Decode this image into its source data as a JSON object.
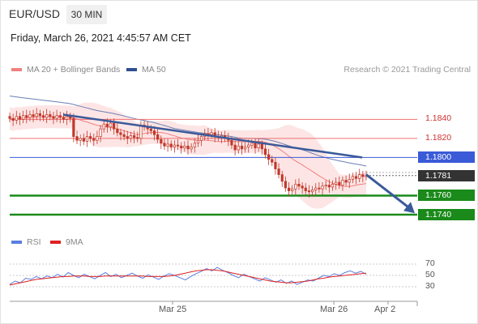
{
  "header": {
    "symbol": "EUR/USD",
    "period": "30 MIN",
    "timestamp": "Friday, March 26, 2021 4:45:57 AM CET"
  },
  "legend": {
    "ma20": "MA 20 + Bollinger Bands",
    "ma50": "MA 50",
    "rsi": "RSI",
    "rsi_ma": "9MA",
    "credit": "Research © 2021 Trading Central"
  },
  "colors": {
    "ma20": "#f08080",
    "bollinger_fill": "#fde0e0",
    "ma50": "#6a7fb5",
    "trendline": "#3a5a9a",
    "resistance": "#f07070",
    "pivot": "#3a5ad8",
    "support": "#1a8a1a",
    "current": "#333333",
    "rsi": "#5b7fe0",
    "rsi_ma": "#e02020",
    "candle": "#c0392b"
  },
  "chart_data": [
    {
      "type": "candlestick",
      "ylim": [
        1.1723,
        1.1876
      ],
      "x_ticks": [
        "Mar 25",
        "Mar 26",
        "Apr 2"
      ],
      "current_price": "1.1781",
      "levels": [
        {
          "label": "1.1840",
          "value": 1.184,
          "kind": "resistance"
        },
        {
          "label": "1.1820",
          "value": 1.182,
          "kind": "resistance"
        },
        {
          "label": "1.1800",
          "value": 1.18,
          "kind": "pivot"
        },
        {
          "label": "1.1760",
          "value": 1.176,
          "kind": "support"
        },
        {
          "label": "1.1740",
          "value": 1.174,
          "kind": "support"
        }
      ],
      "close": [
        1.1841,
        1.1839,
        1.1843,
        1.184,
        1.1844,
        1.1842,
        1.1845,
        1.1843,
        1.1846,
        1.1844,
        1.1842,
        1.1845,
        1.1843,
        1.1841,
        1.1844,
        1.1842,
        1.184,
        1.1843,
        1.1841,
        1.1822,
        1.1818,
        1.182,
        1.1817,
        1.1822,
        1.182,
        1.1818,
        1.1822,
        1.183,
        1.1835,
        1.1832,
        1.1836,
        1.183,
        1.1826,
        1.1824,
        1.1822,
        1.182,
        1.1823,
        1.1821,
        1.182,
        1.1834,
        1.1832,
        1.183,
        1.1828,
        1.1824,
        1.1819,
        1.1815,
        1.1812,
        1.1814,
        1.1811,
        1.1813,
        1.1812,
        1.181,
        1.1812,
        1.1809,
        1.1811,
        1.1815,
        1.1818,
        1.1822,
        1.1825,
        1.1824,
        1.1826,
        1.1822,
        1.1821,
        1.1823,
        1.182,
        1.1818,
        1.1813,
        1.1808,
        1.1812,
        1.1809,
        1.1811,
        1.1813,
        1.1815,
        1.181,
        1.1814,
        1.1809,
        1.1803,
        1.1798,
        1.1795,
        1.1788,
        1.1782,
        1.1775,
        1.1768,
        1.1765,
        1.1767,
        1.1772,
        1.177,
        1.1768,
        1.1765,
        1.1764,
        1.1766,
        1.1768,
        1.1767,
        1.177,
        1.1771,
        1.1769,
        1.1772,
        1.1774,
        1.1771,
        1.1776,
        1.1774,
        1.1777,
        1.178,
        1.1778,
        1.1782,
        1.178,
        1.1781
      ]
    },
    {
      "type": "line",
      "ylim": [
        10,
        90
      ],
      "y_ticks": [
        70,
        50,
        30
      ],
      "series": [
        {
          "name": "RSI",
          "values": [
            34,
            40,
            37,
            45,
            43,
            48,
            44,
            49,
            46,
            52,
            47,
            55,
            50,
            46,
            52,
            48,
            44,
            50,
            55,
            48,
            52,
            46,
            50,
            54,
            49,
            45,
            51,
            47,
            43,
            49,
            53,
            50,
            46,
            42,
            48,
            53,
            57,
            62,
            58,
            64,
            59,
            55,
            50,
            46,
            52,
            48,
            44,
            40,
            46,
            42,
            38,
            42,
            36,
            40,
            34,
            38,
            42,
            40,
            45,
            50,
            48,
            53,
            50,
            55,
            58,
            54,
            57,
            52
          ]
        },
        {
          "name": "9MA",
          "values": [
            33,
            35,
            37,
            39,
            41,
            43,
            44,
            45,
            46,
            47,
            48,
            48,
            49,
            49,
            49,
            48,
            48,
            48,
            49,
            49,
            49,
            49,
            49,
            49,
            49,
            49,
            48,
            48,
            48,
            48,
            49,
            50,
            52,
            54,
            56,
            58,
            59,
            60,
            60,
            59,
            58,
            56,
            54,
            52,
            50,
            48,
            46,
            44,
            42,
            40,
            39,
            38,
            37,
            37,
            38,
            39,
            40,
            42,
            44,
            45,
            47,
            48,
            49,
            50,
            51,
            52,
            53,
            54
          ]
        }
      ]
    }
  ]
}
